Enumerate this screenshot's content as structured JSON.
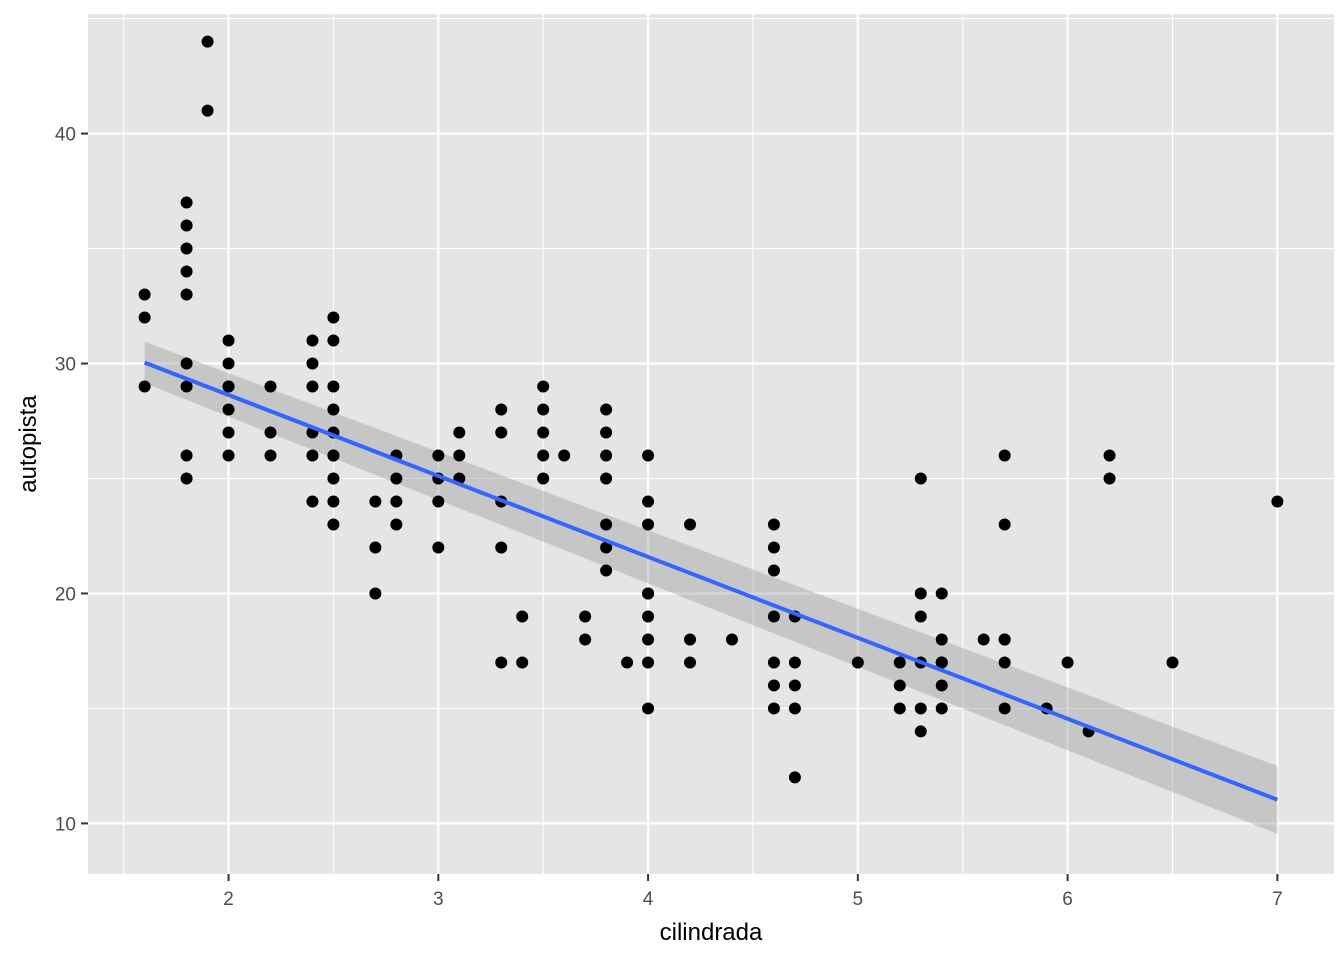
{
  "chart_data": {
    "type": "scatter",
    "title": "",
    "xlabel": "cilindrada",
    "ylabel": "autopista",
    "xlim": [
      1.33,
      7.27
    ],
    "ylim": [
      7.8,
      45.2
    ],
    "x_ticks": [
      2,
      3,
      4,
      5,
      6,
      7
    ],
    "y_ticks": [
      10,
      20,
      30,
      40
    ],
    "grid": true,
    "legend": "none",
    "colors": {
      "panel": "#e5e5e5",
      "grid": "#ffffff",
      "points": "#000000",
      "fit_line": "#3366ff",
      "confidence_band": "#999999"
    },
    "points": {
      "x": [
        1.6,
        1.6,
        1.6,
        1.8,
        1.8,
        1.8,
        1.8,
        1.8,
        1.8,
        1.8,
        1.8,
        1.8,
        1.9,
        1.9,
        2.0,
        2.0,
        2.0,
        2.0,
        2.0,
        2.0,
        2.0,
        2.2,
        2.2,
        2.2,
        2.4,
        2.4,
        2.4,
        2.4,
        2.4,
        2.4,
        2.5,
        2.5,
        2.5,
        2.5,
        2.5,
        2.5,
        2.5,
        2.5,
        2.5,
        2.5,
        2.7,
        2.7,
        2.7,
        2.8,
        2.8,
        2.8,
        2.8,
        3.0,
        3.0,
        3.0,
        3.0,
        3.1,
        3.1,
        3.1,
        3.3,
        3.3,
        3.3,
        3.3,
        3.3,
        3.4,
        3.4,
        3.5,
        3.5,
        3.5,
        3.5,
        3.5,
        3.6,
        3.7,
        3.7,
        3.8,
        3.8,
        3.8,
        3.8,
        3.8,
        3.8,
        3.8,
        3.9,
        4.0,
        4.0,
        4.0,
        4.0,
        4.0,
        4.0,
        4.0,
        4.0,
        4.0,
        4.2,
        4.2,
        4.2,
        4.4,
        4.6,
        4.6,
        4.6,
        4.6,
        4.6,
        4.6,
        4.6,
        4.7,
        4.7,
        4.7,
        4.7,
        4.7,
        5.0,
        5.2,
        5.2,
        5.2,
        5.3,
        5.3,
        5.3,
        5.3,
        5.3,
        5.3,
        5.4,
        5.4,
        5.4,
        5.4,
        5.4,
        5.4,
        5.6,
        5.7,
        5.7,
        5.7,
        5.7,
        5.7,
        5.7,
        5.9,
        6.0,
        6.1,
        6.2,
        6.2,
        6.5,
        7.0
      ],
      "y": [
        33,
        32,
        29,
        37,
        36,
        35,
        34,
        33,
        30,
        29,
        26,
        25,
        44,
        41,
        31,
        30,
        29,
        28,
        27,
        26,
        29,
        29,
        27,
        26,
        31,
        30,
        29,
        27,
        26,
        24,
        32,
        31,
        29,
        28,
        27,
        26,
        25,
        24,
        23,
        26,
        24,
        22,
        20,
        26,
        25,
        24,
        23,
        26,
        25,
        24,
        22,
        27,
        26,
        25,
        28,
        27,
        24,
        22,
        17,
        19,
        17,
        29,
        28,
        27,
        26,
        25,
        26,
        19,
        18,
        28,
        27,
        26,
        25,
        23,
        22,
        21,
        17,
        26,
        24,
        23,
        20,
        19,
        18,
        17,
        15,
        20,
        23,
        18,
        17,
        18,
        23,
        22,
        21,
        19,
        17,
        16,
        15,
        19,
        17,
        16,
        15,
        12,
        17,
        17,
        16,
        15,
        25,
        20,
        19,
        15,
        14,
        17,
        20,
        18,
        17,
        16,
        15,
        17,
        18,
        26,
        23,
        18,
        17,
        15,
        18,
        15,
        17,
        14,
        26,
        25,
        17,
        24
      ]
    },
    "fit": {
      "method": "lm",
      "x": [
        1.6,
        7.0
      ],
      "y": [
        30.04,
        11.03
      ],
      "band_upper": [
        30.95,
        12.5
      ],
      "band_lower": [
        29.15,
        9.55
      ]
    }
  }
}
